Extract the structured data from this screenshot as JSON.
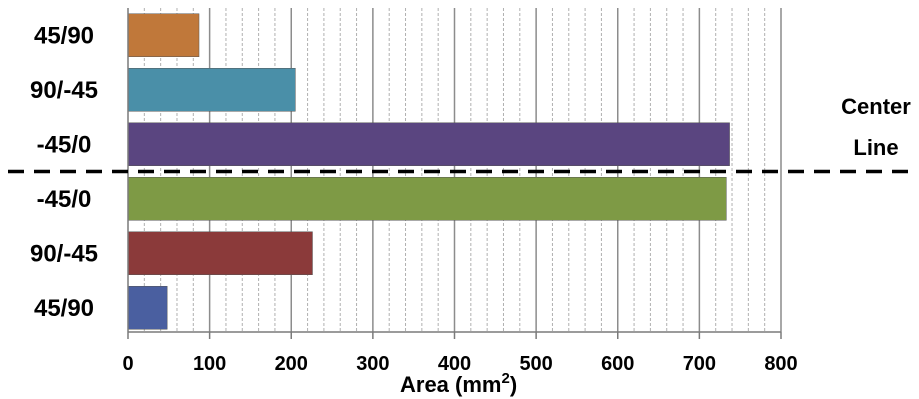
{
  "chart_data": {
    "type": "bar",
    "orientation": "horizontal",
    "categories": [
      "45/90",
      "90/-45",
      "-45/0",
      "-45/0",
      "90/-45",
      "45/90"
    ],
    "values": [
      87,
      205,
      737,
      733,
      226,
      48
    ],
    "colors": [
      "#C0783A",
      "#4A8FA8",
      "#5A4580",
      "#7E9A45",
      "#8B3A3A",
      "#4A5FA0"
    ],
    "xlabel": "Area (mm",
    "xlabel_sup": "2",
    "xlabel_close": ")",
    "xlim": [
      0,
      800
    ],
    "xticks": [
      0,
      100,
      200,
      300,
      400,
      500,
      600,
      700,
      800
    ],
    "minor_tick_step": 20,
    "grid": true,
    "annotation": {
      "line1": "Center",
      "line2": "Line",
      "style": "dashed horizontal line between the third and fourth bars"
    }
  }
}
